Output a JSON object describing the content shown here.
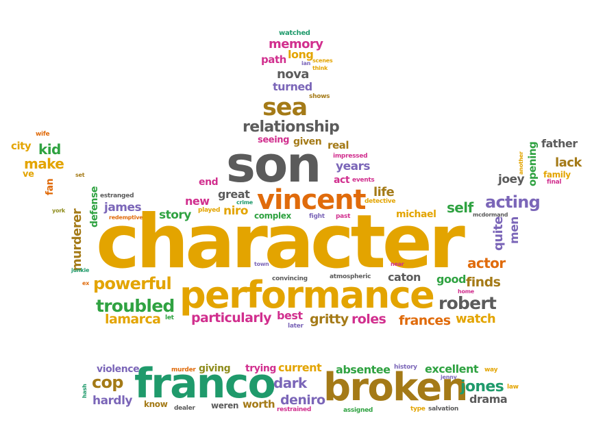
{
  "palette": {
    "gold": "#e3a400",
    "grey": "#5b5b5b",
    "purple": "#7b66b8",
    "green": "#2fa241",
    "orange": "#e06b0b",
    "magenta": "#d12f8e",
    "brown": "#a47a17",
    "teal": "#1f9a6b",
    "olive": "#8e8c1c"
  },
  "words": [
    {
      "text": "watched",
      "color": "#1f9a6b"
    },
    {
      "text": "memory",
      "color": "#d12f8e"
    },
    {
      "text": "path",
      "color": "#d12f8e"
    },
    {
      "text": "long",
      "color": "#e3a400"
    },
    {
      "text": "ian",
      "color": "#7b66b8"
    },
    {
      "text": "scenes",
      "color": "#e3a400"
    },
    {
      "text": "think",
      "color": "#e3a400"
    },
    {
      "text": "nova",
      "color": "#5b5b5b"
    },
    {
      "text": "turned",
      "color": "#7b66b8"
    },
    {
      "text": "shows",
      "color": "#a47a17"
    },
    {
      "text": "sea",
      "color": "#a47a17"
    },
    {
      "text": "relationship",
      "color": "#5b5b5b"
    },
    {
      "text": "seeing",
      "color": "#d12f8e"
    },
    {
      "text": "given",
      "color": "#a47a17"
    },
    {
      "text": "real",
      "color": "#a47a17"
    },
    {
      "text": "impressed",
      "color": "#d12f8e"
    },
    {
      "text": "son",
      "color": "#5b5b5b"
    },
    {
      "text": "years",
      "color": "#7b66b8"
    },
    {
      "text": "act",
      "color": "#d12f8e"
    },
    {
      "text": "events",
      "color": "#d12f8e"
    },
    {
      "text": "end",
      "color": "#d12f8e"
    },
    {
      "text": "vincent",
      "color": "#e06b0b"
    },
    {
      "text": "life",
      "color": "#a47a17"
    },
    {
      "text": "great",
      "color": "#5b5b5b"
    },
    {
      "text": "crime",
      "color": "#1f9a6b"
    },
    {
      "text": "new",
      "color": "#d12f8e"
    },
    {
      "text": "played",
      "color": "#e3a400"
    },
    {
      "text": "niro",
      "color": "#e3a400"
    },
    {
      "text": "detective",
      "color": "#e3a400"
    },
    {
      "text": "story",
      "color": "#2fa241"
    },
    {
      "text": "complex",
      "color": "#2fa241"
    },
    {
      "text": "fight",
      "color": "#7b66b8"
    },
    {
      "text": "past",
      "color": "#d12f8e"
    },
    {
      "text": "michael",
      "color": "#e3a400"
    },
    {
      "text": "wife",
      "color": "#e06b0b"
    },
    {
      "text": "city",
      "color": "#e3a400"
    },
    {
      "text": "kid",
      "color": "#2fa241"
    },
    {
      "text": "make",
      "color": "#e3a400"
    },
    {
      "text": "ve",
      "color": "#e3a400"
    },
    {
      "text": "set",
      "color": "#a47a17"
    },
    {
      "text": "fan",
      "color": "#e06b0b"
    },
    {
      "text": "estranged",
      "color": "#5b5b5b"
    },
    {
      "text": "defense",
      "color": "#2fa241"
    },
    {
      "text": "york",
      "color": "#8e8c1c"
    },
    {
      "text": "james",
      "color": "#7b66b8"
    },
    {
      "text": "redemptive",
      "color": "#e06b0b"
    },
    {
      "text": "murderer",
      "color": "#a47a17"
    },
    {
      "text": "junkie",
      "color": "#1f9a6b"
    },
    {
      "text": "ex",
      "color": "#e06b0b"
    },
    {
      "text": "character",
      "color": "#e3a400"
    },
    {
      "text": "town",
      "color": "#7b66b8"
    },
    {
      "text": "near",
      "color": "#d12f8e"
    },
    {
      "text": "powerful",
      "color": "#e3a400"
    },
    {
      "text": "convincing",
      "color": "#5b5b5b"
    },
    {
      "text": "atmospheric",
      "color": "#5b5b5b"
    },
    {
      "text": "caton",
      "color": "#5b5b5b"
    },
    {
      "text": "performance",
      "color": "#e3a400"
    },
    {
      "text": "troubled",
      "color": "#2fa241"
    },
    {
      "text": "lamarca",
      "color": "#e3a400"
    },
    {
      "text": "let",
      "color": "#2fa241"
    },
    {
      "text": "particularly",
      "color": "#d12f8e"
    },
    {
      "text": "best",
      "color": "#d12f8e"
    },
    {
      "text": "later",
      "color": "#7b66b8"
    },
    {
      "text": "gritty",
      "color": "#a47a17"
    },
    {
      "text": "roles",
      "color": "#d12f8e"
    },
    {
      "text": "frances",
      "color": "#e06b0b"
    },
    {
      "text": "watch",
      "color": "#e3a400"
    },
    {
      "text": "robert",
      "color": "#5b5b5b"
    },
    {
      "text": "good",
      "color": "#2fa241"
    },
    {
      "text": "finds",
      "color": "#a47a17"
    },
    {
      "text": "home",
      "color": "#d12f8e"
    },
    {
      "text": "actor",
      "color": "#e06b0b"
    },
    {
      "text": "quite",
      "color": "#7b66b8"
    },
    {
      "text": "men",
      "color": "#7b66b8"
    },
    {
      "text": "mcdormand",
      "color": "#5b5b5b"
    },
    {
      "text": "self",
      "color": "#2fa241"
    },
    {
      "text": "acting",
      "color": "#7b66b8"
    },
    {
      "text": "joey",
      "color": "#5b5b5b"
    },
    {
      "text": "another",
      "color": "#e3a400"
    },
    {
      "text": "opening",
      "color": "#2fa241"
    },
    {
      "text": "father",
      "color": "#5b5b5b"
    },
    {
      "text": "lack",
      "color": "#a47a17"
    },
    {
      "text": "family",
      "color": "#e3a400"
    },
    {
      "text": "final",
      "color": "#d12f8e"
    },
    {
      "text": "violence",
      "color": "#7b66b8"
    },
    {
      "text": "murder",
      "color": "#e06b0b"
    },
    {
      "text": "giving",
      "color": "#8e8c1c"
    },
    {
      "text": "trying",
      "color": "#d12f8e"
    },
    {
      "text": "current",
      "color": "#e3a400"
    },
    {
      "text": "absentee",
      "color": "#2fa241"
    },
    {
      "text": "history",
      "color": "#7b66b8"
    },
    {
      "text": "excellent",
      "color": "#2fa241"
    },
    {
      "text": "way",
      "color": "#e3a400"
    },
    {
      "text": "jenny",
      "color": "#7b66b8"
    },
    {
      "text": "law",
      "color": "#e3a400"
    },
    {
      "text": "cop",
      "color": "#a47a17"
    },
    {
      "text": "franco",
      "color": "#1f9a6b"
    },
    {
      "text": "dark",
      "color": "#7b66b8"
    },
    {
      "text": "broken",
      "color": "#a47a17"
    },
    {
      "text": "jones",
      "color": "#1f9a6b"
    },
    {
      "text": "drama",
      "color": "#5b5b5b"
    },
    {
      "text": "hash",
      "color": "#1f9a6b"
    },
    {
      "text": "hardly",
      "color": "#7b66b8"
    },
    {
      "text": "know",
      "color": "#a47a17"
    },
    {
      "text": "dealer",
      "color": "#5b5b5b"
    },
    {
      "text": "weren",
      "color": "#5b5b5b"
    },
    {
      "text": "deniro",
      "color": "#7b66b8"
    },
    {
      "text": "worth",
      "color": "#a47a17"
    },
    {
      "text": "restrained",
      "color": "#d12f8e"
    },
    {
      "text": "assigned",
      "color": "#2fa241"
    },
    {
      "text": "type",
      "color": "#e3a400"
    },
    {
      "text": "salvation",
      "color": "#5b5b5b"
    }
  ]
}
